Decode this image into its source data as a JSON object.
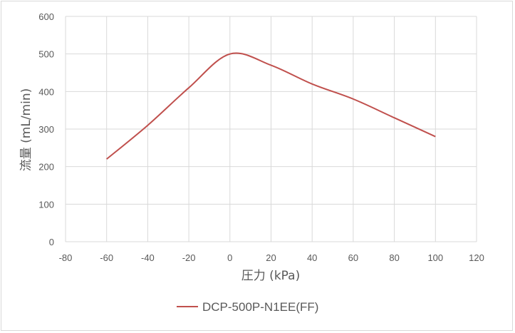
{
  "chart_data": {
    "type": "line",
    "title": "",
    "xlabel": "圧力 (kPa)",
    "ylabel": "流量 (mL/min)",
    "xlim": [
      -80,
      120
    ],
    "ylim": [
      0,
      600
    ],
    "xticks": [
      -80,
      -60,
      -40,
      -20,
      0,
      20,
      40,
      60,
      80,
      100,
      120
    ],
    "yticks": [
      0,
      100,
      200,
      300,
      400,
      500,
      600
    ],
    "grid": true,
    "legend_position": "bottom",
    "series": [
      {
        "name": "DCP-500P-N1EE(FF)",
        "color": "#c0504d",
        "smooth": true,
        "x": [
          -60,
          -40,
          -20,
          0,
          20,
          40,
          60,
          80,
          100
        ],
        "y": [
          220,
          310,
          410,
          500,
          470,
          420,
          380,
          330,
          280
        ]
      }
    ]
  }
}
